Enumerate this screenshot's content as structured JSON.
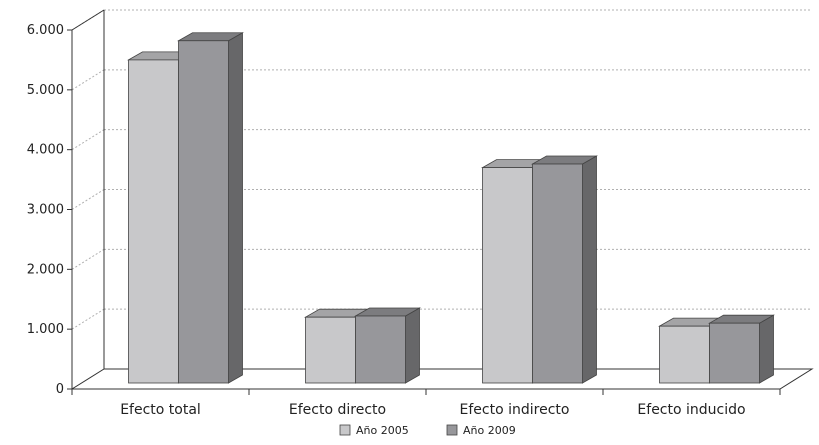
{
  "chart_data": {
    "type": "bar",
    "categories": [
      "Efecto total",
      "Efecto directo",
      "Efecto indirecto",
      "Efecto inducido"
    ],
    "series": [
      {
        "name": "Año 2005",
        "values": [
          5400,
          1100,
          3600,
          950
        ],
        "color": "#c8c8ca"
      },
      {
        "name": "Año 2009",
        "values": [
          5720,
          1120,
          3660,
          1000
        ],
        "color": "#97979b"
      }
    ],
    "ylim": [
      0,
      6000
    ],
    "yticks": [
      0,
      1000,
      2000,
      3000,
      4000,
      5000,
      6000
    ],
    "ytick_labels": [
      "0",
      "1.000",
      "2.000",
      "3.000",
      "4.000",
      "5.000",
      "6.000"
    ],
    "grid": true,
    "legend_position": "bottom",
    "style": "3d"
  }
}
